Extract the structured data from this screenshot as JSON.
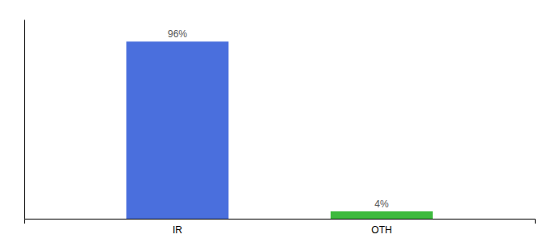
{
  "chart_data": {
    "type": "bar",
    "categories": [
      "IR",
      "OTH"
    ],
    "values": [
      96,
      4
    ],
    "value_labels": [
      "96%",
      "4%"
    ],
    "colors": [
      "#4a6fdd",
      "#3dba3d"
    ],
    "ylim": [
      0,
      108
    ],
    "data_labels": true,
    "tick_labels": "x"
  }
}
